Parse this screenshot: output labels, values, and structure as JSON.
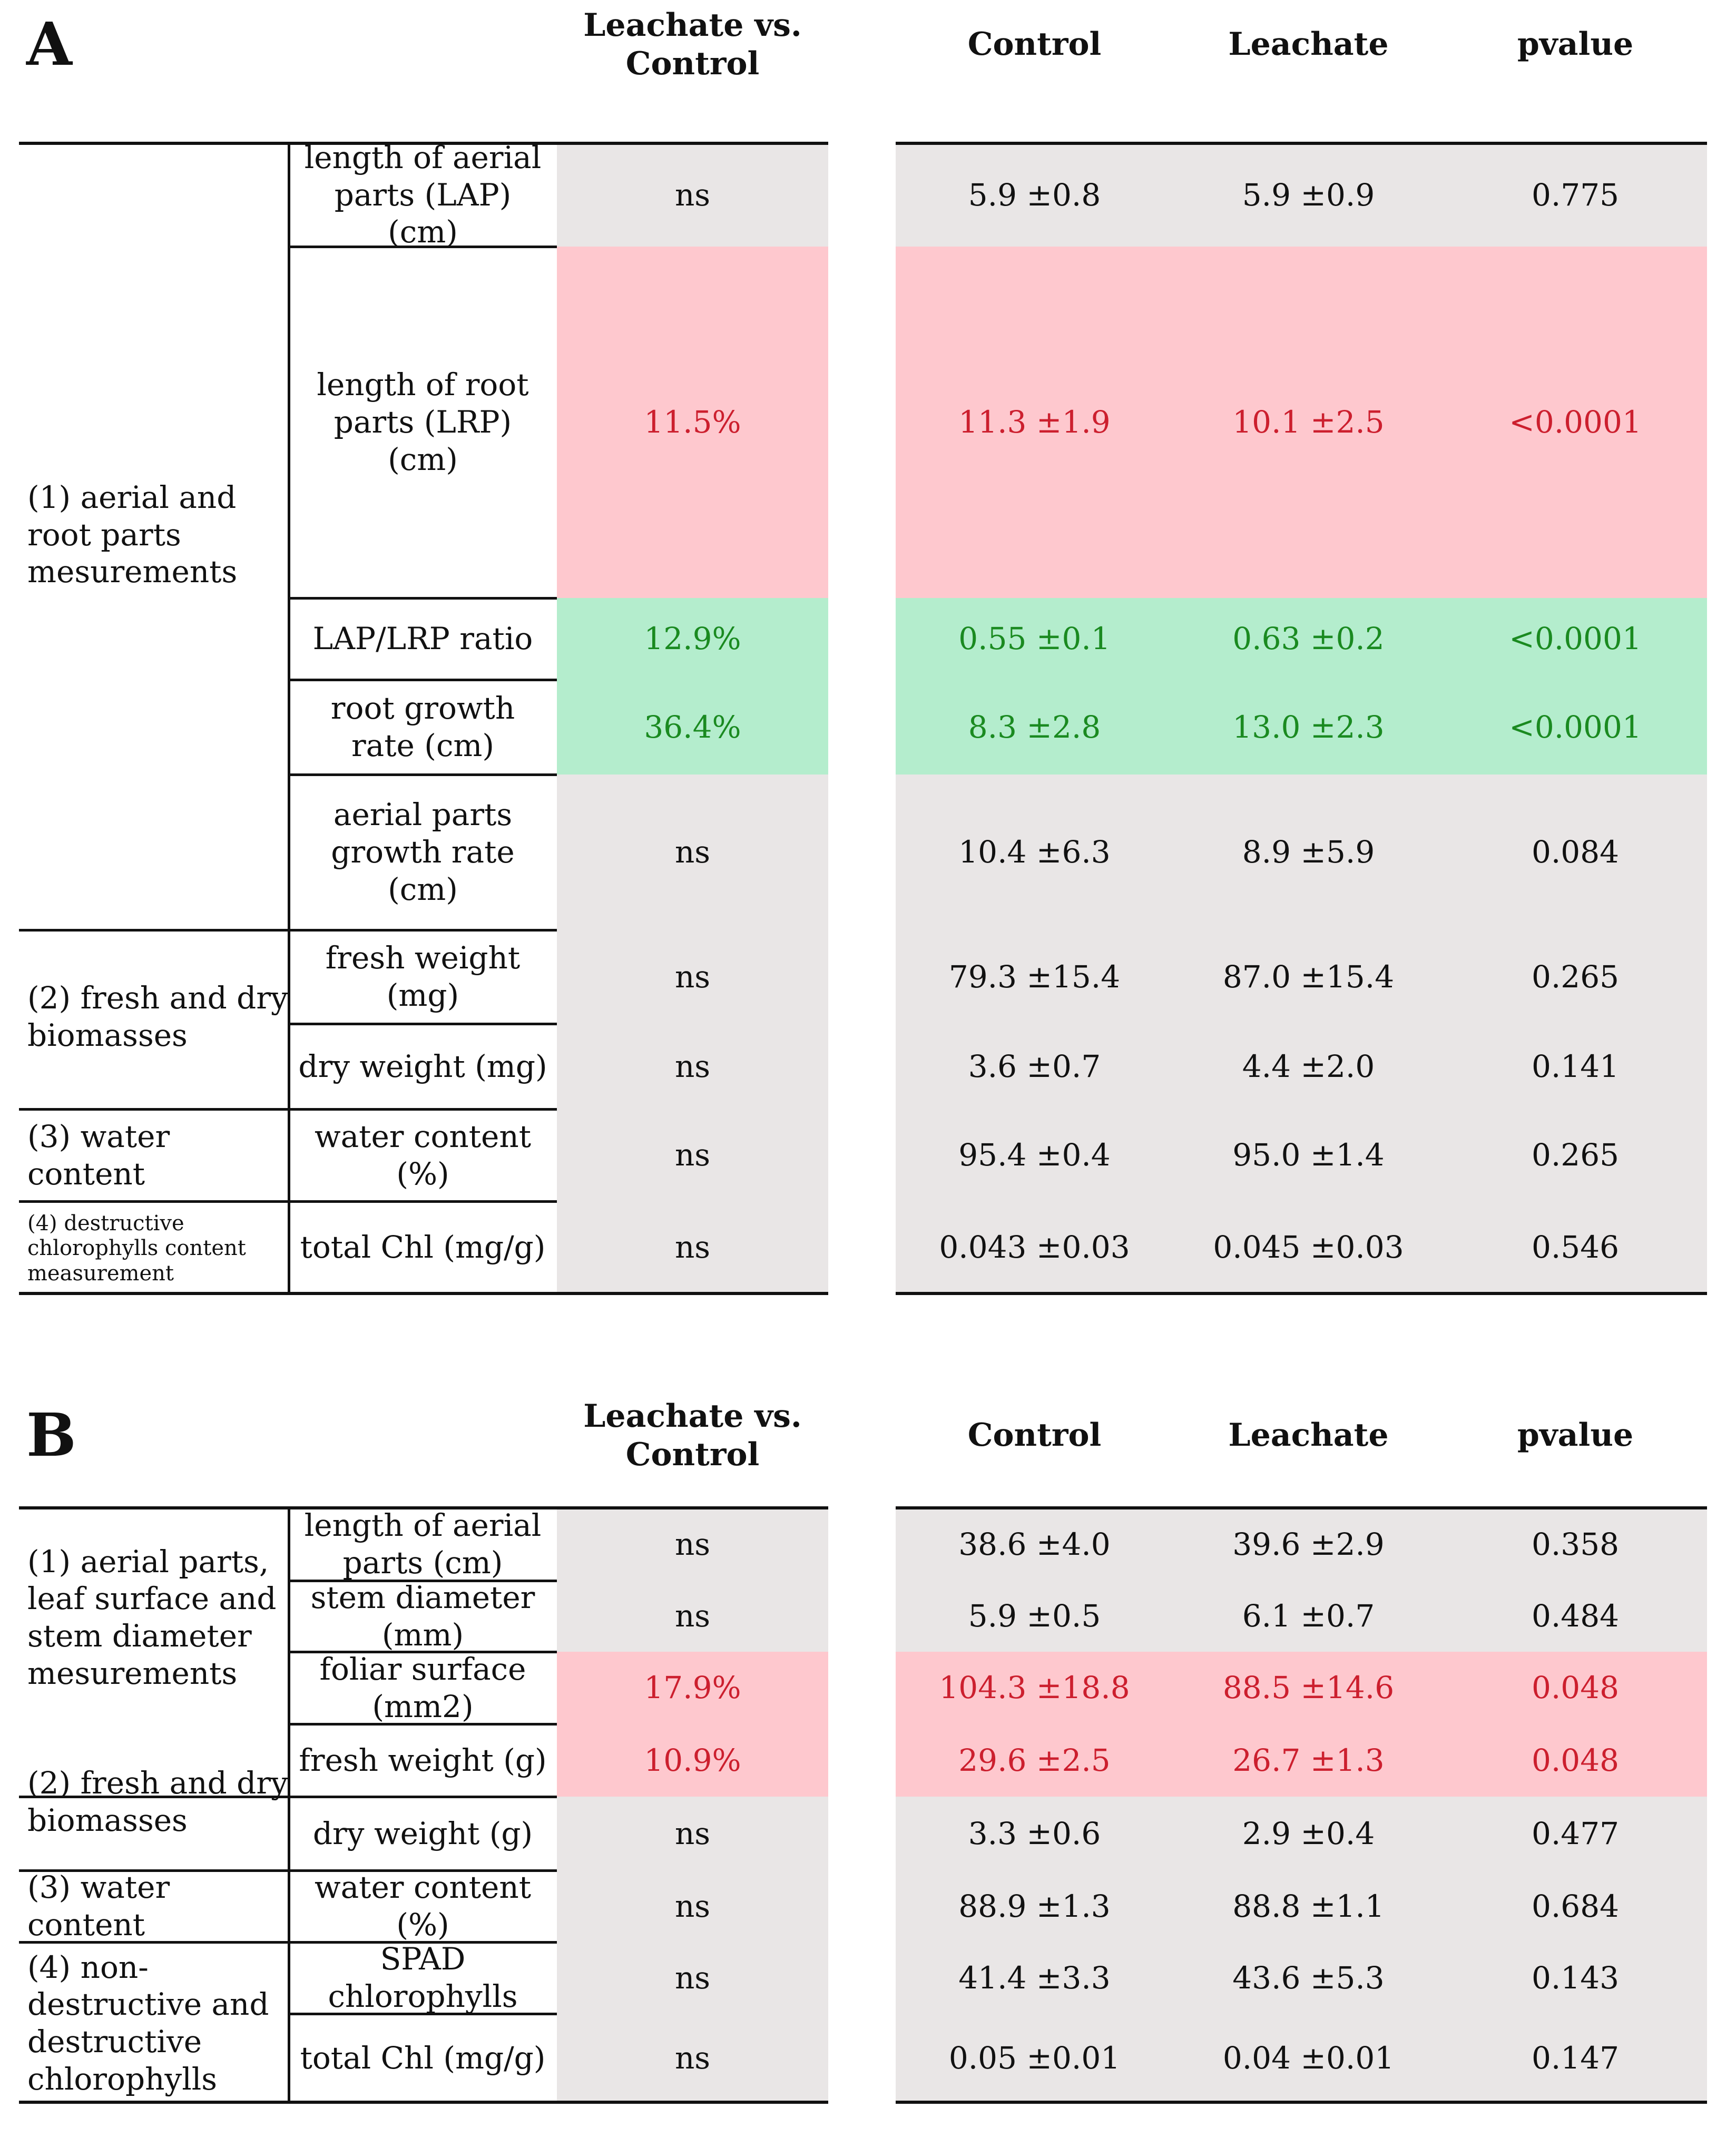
{
  "colors": {
    "gray": "#e9e6e6",
    "pink": "#fec8ce",
    "green": "#b4edcd",
    "red_text": "#cc1f2e",
    "green_text": "#1a8a20"
  },
  "panels": [
    {
      "id": "A",
      "label": "A",
      "headers": {
        "comparison": "Leachate vs. Control",
        "control": "Control",
        "leachate": "Leachate",
        "pvalue": "pvalue"
      },
      "groups": [
        {
          "label": "(1) aerial and root parts mesurements"
        },
        {
          "label": "(2) fresh and dry biomasses"
        },
        {
          "label": "(3) water content"
        },
        {
          "label": "(4) destructive chlorophylls content measurement"
        }
      ],
      "rows": [
        {
          "param": "length of aerial parts (LAP) (cm)",
          "comparison": "ns",
          "control": "5.9 ±0.8",
          "leachate": "5.9 ±0.9",
          "pvalue": "0.775",
          "highlight": "gray"
        },
        {
          "param": "length of root parts (LRP) (cm)",
          "comparison": "11.5%",
          "control": "11.3 ±1.9",
          "leachate": "10.1 ±2.5",
          "pvalue": "<0.0001",
          "highlight": "pink"
        },
        {
          "param": "LAP/LRP ratio",
          "comparison": "12.9%",
          "control": "0.55 ±0.1",
          "leachate": "0.63 ±0.2",
          "pvalue": "<0.0001",
          "highlight": "green"
        },
        {
          "param": "root growth rate (cm)",
          "comparison": "36.4%",
          "control": "8.3 ±2.8",
          "leachate": "13.0 ±2.3",
          "pvalue": "<0.0001",
          "highlight": "green"
        },
        {
          "param": "aerial parts growth rate (cm)",
          "comparison": "ns",
          "control": "10.4 ±6.3",
          "leachate": "8.9 ±5.9",
          "pvalue": "0.084",
          "highlight": "gray"
        },
        {
          "param": "fresh weight (mg)",
          "comparison": "ns",
          "control": "79.3 ±15.4",
          "leachate": "87.0 ±15.4",
          "pvalue": "0.265",
          "highlight": "gray"
        },
        {
          "param": "dry weight (mg)",
          "comparison": "ns",
          "control": "3.6 ±0.7",
          "leachate": "4.4 ±2.0",
          "pvalue": "0.141",
          "highlight": "gray"
        },
        {
          "param": "water content (%)",
          "comparison": "ns",
          "control": "95.4 ±0.4",
          "leachate": "95.0 ±1.4",
          "pvalue": "0.265",
          "highlight": "gray"
        },
        {
          "param": "total Chl (mg/g)",
          "comparison": "ns",
          "control": "0.043 ±0.03",
          "leachate": "0.045 ±0.03",
          "pvalue": "0.546",
          "highlight": "gray"
        }
      ]
    },
    {
      "id": "B",
      "label": "B",
      "headers": {
        "comparison": "Leachate vs. Control",
        "control": "Control",
        "leachate": "Leachate",
        "pvalue": "pvalue"
      },
      "groups": [
        {
          "label": "(1) aerial parts, leaf surface and stem diameter mesurements"
        },
        {
          "label": "(2) fresh and dry biomasses"
        },
        {
          "label": "(3) water content"
        },
        {
          "label": "(4) non-destructive and destructive chlorophylls"
        }
      ],
      "rows": [
        {
          "param": "length of aerial parts (cm)",
          "comparison": "ns",
          "control": "38.6 ±4.0",
          "leachate": "39.6 ±2.9",
          "pvalue": "0.358",
          "highlight": "gray"
        },
        {
          "param": "stem diameter (mm)",
          "comparison": "ns",
          "control": "5.9 ±0.5",
          "leachate": "6.1 ±0.7",
          "pvalue": "0.484",
          "highlight": "gray"
        },
        {
          "param": "foliar surface (mm2)",
          "comparison": "17.9%",
          "control": "104.3 ±18.8",
          "leachate": "88.5 ±14.6",
          "pvalue": "0.048",
          "highlight": "pink"
        },
        {
          "param": "fresh weight (g)",
          "comparison": "10.9%",
          "control": "29.6 ±2.5",
          "leachate": "26.7 ±1.3",
          "pvalue": "0.048",
          "highlight": "pink"
        },
        {
          "param": "dry weight (g)",
          "comparison": "ns",
          "control": "3.3 ±0.6",
          "leachate": "2.9 ±0.4",
          "pvalue": "0.477",
          "highlight": "gray"
        },
        {
          "param": "water content (%)",
          "comparison": "ns",
          "control": "88.9 ±1.3",
          "leachate": "88.8 ±1.1",
          "pvalue": "0.684",
          "highlight": "gray"
        },
        {
          "param": "SPAD chlorophylls",
          "comparison": "ns",
          "control": "41.4 ±3.3",
          "leachate": "43.6 ±5.3",
          "pvalue": "0.143",
          "highlight": "gray"
        },
        {
          "param": "total Chl (mg/g)",
          "comparison": "ns",
          "control": "0.05 ±0.01",
          "leachate": "0.04 ±0.01",
          "pvalue": "0.147",
          "highlight": "gray"
        }
      ]
    }
  ]
}
